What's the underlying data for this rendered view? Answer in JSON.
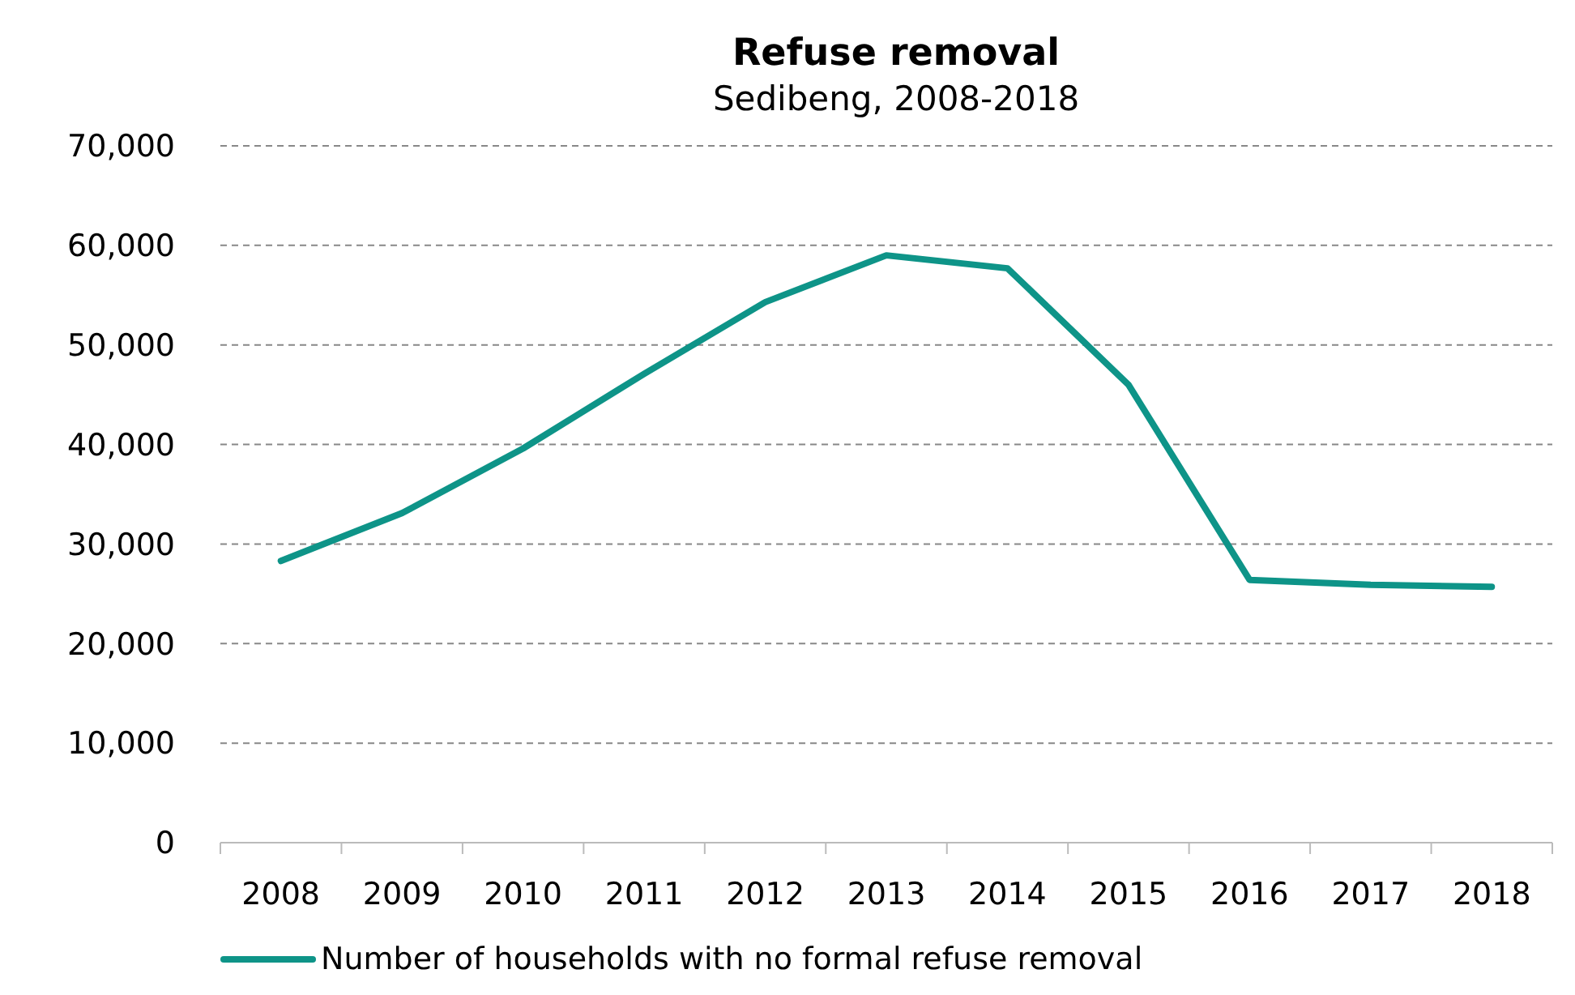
{
  "chart_data": {
    "type": "line",
    "title": "Refuse removal",
    "subtitle": "Sedibeng, 2008-2018",
    "categories": [
      "2008",
      "2009",
      "2010",
      "2011",
      "2012",
      "2013",
      "2014",
      "2015",
      "2016",
      "2017",
      "2018"
    ],
    "series": [
      {
        "name": "Number of households with no formal refuse removal",
        "color": "#0e9488",
        "values": [
          28300,
          33100,
          39600,
          47100,
          54300,
          59000,
          57700,
          46000,
          26400,
          25900,
          25700
        ]
      }
    ],
    "ylim": [
      0,
      70000
    ],
    "yticks": [
      {
        "value": 0,
        "label": "0"
      },
      {
        "value": 10000,
        "label": "10,000"
      },
      {
        "value": 20000,
        "label": "20,000"
      },
      {
        "value": 30000,
        "label": "30,000"
      },
      {
        "value": 40000,
        "label": "40,000"
      },
      {
        "value": 50000,
        "label": "50,000"
      },
      {
        "value": 60000,
        "label": "60,000"
      },
      {
        "value": 70000,
        "label": "70,000"
      }
    ],
    "grid": "y",
    "legend": "bottom",
    "marker": "none",
    "line_style": "solid"
  }
}
